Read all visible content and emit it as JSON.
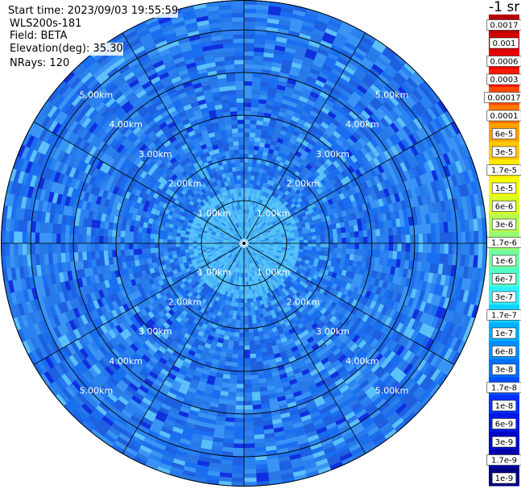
{
  "header": {
    "start_time": "Start time: 2023/09/03 19:55:59",
    "instrument": "WLS200s-181",
    "field": "Field: BETA",
    "elevation": "Elevation(deg): 35.30",
    "nrays": "NRays: 120"
  },
  "chart_data": {
    "type": "heatmap",
    "projection": "polar-ppi",
    "title": "",
    "range_rings_km": [
      1,
      2,
      3,
      4,
      5
    ],
    "ring_labels": [
      "1.00km",
      "2.00km",
      "3.00km",
      "4.00km",
      "5.00km"
    ],
    "max_range_km": 5.7,
    "spoke_count": 12,
    "field": "BETA",
    "elevation_deg": 35.3,
    "nrays": 120,
    "colorbar": {
      "unit": "-1 sr",
      "scale": "log",
      "ticks": [
        "0.0017",
        "0.001",
        "0.0006",
        "0.0003",
        "0.00017",
        "0.0001",
        "6e-5",
        "3e-5",
        "1.7e-5",
        "1e-5",
        "6e-6",
        "3e-6",
        "1.7e-6",
        "1e-6",
        "6e-7",
        "3e-7",
        "1.7e-7",
        "1e-7",
        "6e-8",
        "3e-8",
        "1.7e-8",
        "1e-8",
        "6e-9",
        "3e-9",
        "1.7e-9",
        "1e-9"
      ],
      "colors": [
        "#b50000",
        "#d40000",
        "#e80000",
        "#ff1a00",
        "#ff4a00",
        "#ff7800",
        "#ffa000",
        "#ffc800",
        "#ffe800",
        "#f5ff00",
        "#d8ff20",
        "#b8ff50",
        "#96ff70",
        "#70ffa0",
        "#50ffc8",
        "#30f0ff",
        "#10d0ff",
        "#00b0ff",
        "#0090ff",
        "#0070ff",
        "#0050ff",
        "#0030ff",
        "#0018e8",
        "#0008c8",
        "#0000a8",
        "#000080"
      ]
    },
    "dominant_range_values": {
      "near_range": "1.7e-7 to 1e-7",
      "mid_range": "6e-8 to 3e-8",
      "far_range": "3e-8 to 1.7e-8"
    }
  }
}
